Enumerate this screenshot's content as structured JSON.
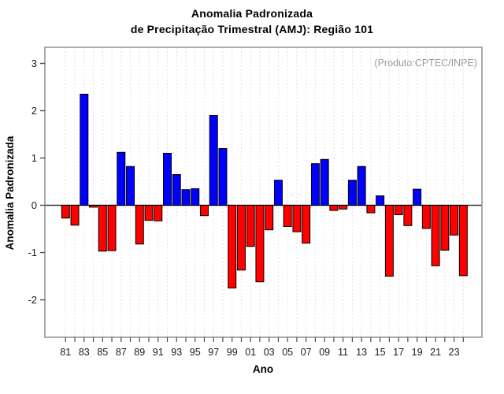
{
  "header": {
    "title_line1": "Anomalia Padronizada",
    "title_line2": "de Precipitação Trimestral (AMJ): Região 101"
  },
  "annotation": "(Produto:CPTEC/INPE)",
  "chart_data": {
    "type": "bar",
    "title": "Anomalia Padronizada de Precipitação Trimestral (AMJ): Região 101",
    "xlabel": "Ano",
    "ylabel": "Anomalia Padronizada",
    "ylim": [
      -2.8,
      3.35
    ],
    "yticks": [
      3,
      2,
      1,
      0,
      -1,
      -2
    ],
    "x_tick_labels": [
      "81",
      "83",
      "85",
      "87",
      "89",
      "91",
      "93",
      "95",
      "97",
      "99",
      "01",
      "03",
      "05",
      "07",
      "09",
      "11",
      "13",
      "15",
      "17",
      "19",
      "21",
      "23"
    ],
    "categories": [
      1981,
      1982,
      1983,
      1984,
      1985,
      1986,
      1987,
      1988,
      1989,
      1990,
      1991,
      1992,
      1993,
      1994,
      1995,
      1996,
      1997,
      1998,
      1999,
      2000,
      2001,
      2002,
      2003,
      2004,
      2005,
      2006,
      2007,
      2008,
      2009,
      2010,
      2011,
      2012,
      2013,
      2014,
      2015,
      2016,
      2017,
      2018,
      2019,
      2020,
      2021,
      2022,
      2023,
      2024
    ],
    "values": [
      -0.27,
      -0.42,
      2.35,
      -0.04,
      -0.97,
      -0.96,
      1.12,
      0.82,
      -0.82,
      -0.32,
      -0.33,
      1.1,
      0.65,
      0.33,
      0.35,
      -0.22,
      1.9,
      1.2,
      -1.75,
      -1.37,
      -0.87,
      -1.62,
      -0.52,
      0.53,
      -0.45,
      -0.56,
      -0.8,
      0.88,
      0.97,
      -0.11,
      -0.08,
      0.53,
      0.82,
      -0.16,
      0.2,
      -1.5,
      -0.2,
      -0.43,
      0.34,
      -0.49,
      -1.28,
      -0.95,
      -0.63,
      -1.49
    ],
    "grid": "vertical-dashed-per-year",
    "legend": "none",
    "colors": {
      "positive": "#0000FF",
      "negative": "#FF0000",
      "bar_border": "#000000",
      "grid_line": "#DBDBDB",
      "frame": "#888888",
      "tick": "#4D4D4D",
      "tick_text": "#1A1A1A",
      "zero_line": "#333333",
      "annotation": "#999999"
    }
  }
}
